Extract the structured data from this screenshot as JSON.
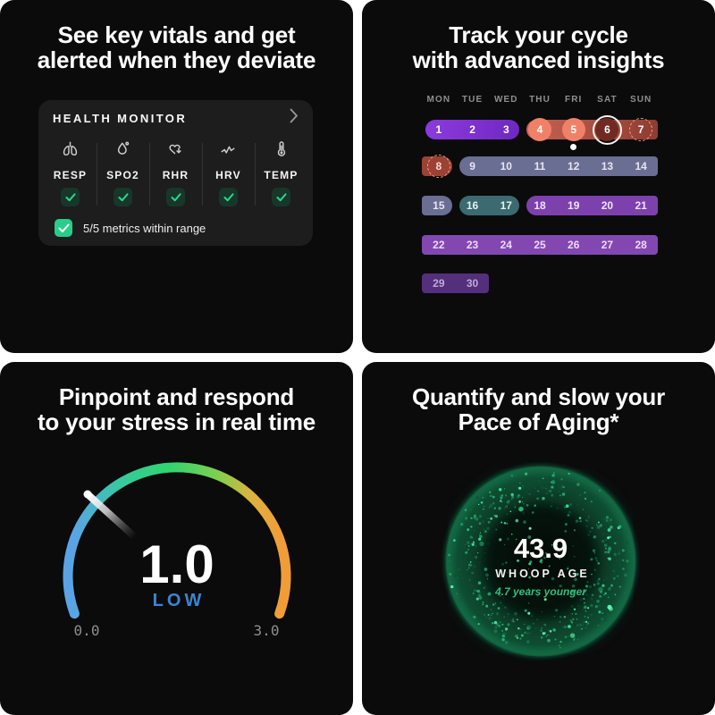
{
  "vitals": {
    "title_lines": [
      "See key vitals and get",
      "alerted when they deviate"
    ],
    "card": {
      "header": "HEALTH MONITOR",
      "metrics": [
        {
          "label": "RESP",
          "icon": "lungs-icon"
        },
        {
          "label": "SPO2",
          "icon": "droplet-icon"
        },
        {
          "label": "RHR",
          "icon": "heart-down-icon"
        },
        {
          "label": "HRV",
          "icon": "pulse-icon"
        },
        {
          "label": "TEMP",
          "icon": "thermometer-icon"
        }
      ],
      "summary": "5/5 metrics within range",
      "check_color": "#2bd68c",
      "checkbox_color": "#27ce8b"
    }
  },
  "cycle": {
    "title_lines": [
      "Track your cycle",
      "with advanced insights"
    ],
    "weekdays": [
      "MON",
      "TUE",
      "WED",
      "THU",
      "FRI",
      "SAT",
      "SUN"
    ],
    "markers": {
      "solid": "#f08168",
      "selected_fill": "#702a22",
      "selected_ring": "#f7f3ef",
      "dashed": "#eda182"
    },
    "period_dot": {
      "row": 0,
      "col": 4
    },
    "segments": [
      {
        "row": 0,
        "start": 0,
        "end": 2,
        "color": "#8a3bdc",
        "color2": "#7028c2",
        "round_left": true,
        "round_right": true,
        "text_color": "#ffffff",
        "days": [
          {
            "label": "1"
          },
          {
            "label": "2"
          },
          {
            "label": "3"
          }
        ]
      },
      {
        "row": 0,
        "start": 3,
        "end": 6,
        "color": "#c76352",
        "color2": "#8f3c31",
        "round_left": true,
        "round_right": false,
        "text_color": "#ffffff",
        "days": [
          {
            "label": "4",
            "marker": "solid"
          },
          {
            "label": "5",
            "marker": "solid"
          },
          {
            "label": "6",
            "marker": "selected"
          },
          {
            "label": "7",
            "marker": "dashed"
          }
        ]
      },
      {
        "row": 1,
        "start": 0,
        "end": 0,
        "color": "#9c4136",
        "round_left": false,
        "round_right": true,
        "text_color": "#f3d9cf",
        "days": [
          {
            "label": "8",
            "marker": "dashed"
          }
        ]
      },
      {
        "row": 1,
        "start": 1,
        "end": 6,
        "color": "#6a6e92",
        "round_left": true,
        "round_right": false,
        "text_color": "#e6e7f2",
        "days": [
          {
            "label": "9"
          },
          {
            "label": "10"
          },
          {
            "label": "11"
          },
          {
            "label": "12"
          },
          {
            "label": "13"
          },
          {
            "label": "14"
          }
        ]
      },
      {
        "row": 2,
        "start": 0,
        "end": 0,
        "color": "#6a6e92",
        "round_left": false,
        "round_right": true,
        "text_color": "#e6e7f2",
        "days": [
          {
            "label": "15"
          }
        ]
      },
      {
        "row": 2,
        "start": 1,
        "end": 2,
        "color": "#3b6a70",
        "round_left": true,
        "round_right": true,
        "text_color": "#e8f1f0",
        "days": [
          {
            "label": "16"
          },
          {
            "label": "17"
          }
        ]
      },
      {
        "row": 2,
        "start": 3,
        "end": 6,
        "color": "#7d41ae",
        "round_left": true,
        "round_right": false,
        "text_color": "#f0e4f8",
        "days": [
          {
            "label": "18"
          },
          {
            "label": "19"
          },
          {
            "label": "20"
          },
          {
            "label": "21"
          }
        ]
      },
      {
        "row": 3,
        "start": 0,
        "end": 6,
        "color": "#8347b2",
        "round_left": false,
        "round_right": false,
        "text_color": "#ecdcf6",
        "days": [
          {
            "label": "22"
          },
          {
            "label": "23"
          },
          {
            "label": "24"
          },
          {
            "label": "25"
          },
          {
            "label": "26"
          },
          {
            "label": "27"
          },
          {
            "label": "28"
          }
        ]
      },
      {
        "row": 4,
        "start": 0,
        "end": 1,
        "color": "#542f7c",
        "round_left": false,
        "round_right": false,
        "text_color": "#bfa9d6",
        "days": [
          {
            "label": "29"
          },
          {
            "label": "30"
          }
        ]
      }
    ]
  },
  "stress": {
    "title_lines": [
      "Pinpoint and respond",
      "to your stress in real time"
    ],
    "gauge": {
      "value": "1.0",
      "level": "LOW",
      "min": "0.0",
      "max": "3.0",
      "level_color": "#3d84cf",
      "arc_colors": [
        "#5aa4e6",
        "#37c9a0",
        "#2fd56e",
        "#7ed04e",
        "#ddb23e",
        "#f09d38"
      ]
    }
  },
  "aging": {
    "title_lines": [
      "Quantify and slow your",
      "Pace of Aging*"
    ],
    "age_value": "43.9",
    "age_label": "WHOOP AGE",
    "delta_label": "4.7 years younger",
    "delta_color": "#2fbf7d",
    "particle_colors": [
      "#63f7b8",
      "#34e096",
      "#28bd7c",
      "#1b9562",
      "#126b46",
      "#0d4d33"
    ]
  }
}
